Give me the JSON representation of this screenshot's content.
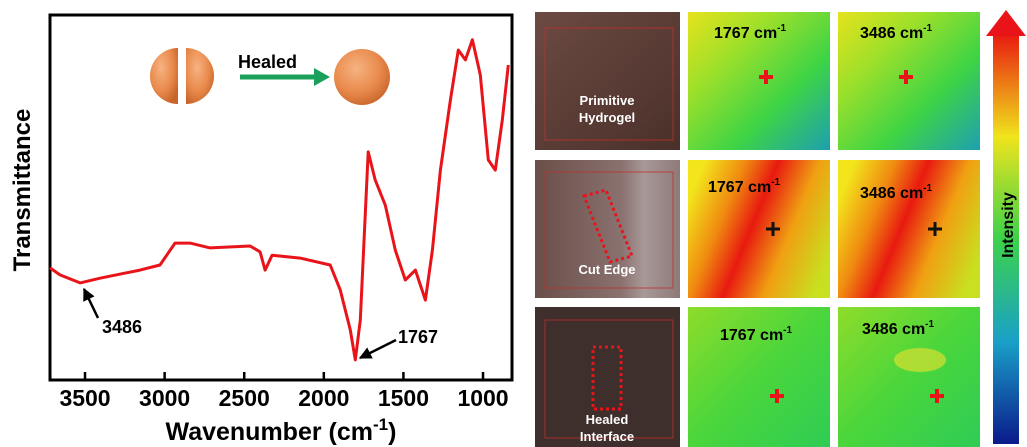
{
  "chart_data": {
    "type": "line",
    "x_label": {
      "text": "Wavenumber (cm",
      "sup": "-1",
      "end": ")"
    },
    "y_label": "Transmittance",
    "x": [
      3720,
      3657,
      3531,
      3406,
      3155,
      3029,
      2935,
      2840,
      2715,
      2463,
      2400,
      2369,
      2325,
      2149,
      1960,
      1897,
      1834,
      1802,
      1771,
      1721,
      1677,
      1614,
      1551,
      1488,
      1425,
      1362,
      1318,
      1268,
      1205,
      1155,
      1111,
      1067,
      1017,
      967,
      923,
      879,
      841
    ],
    "series": [
      {
        "color": "#e8141a",
        "values": [
          30.7,
          28.8,
          26.6,
          27.9,
          30.1,
          31.5,
          37.5,
          37.5,
          36.2,
          36.7,
          35.1,
          30.1,
          34.2,
          33.4,
          31.5,
          24.7,
          13.7,
          5.5,
          16.4,
          62.5,
          54.8,
          47.9,
          35.6,
          27.4,
          30.1,
          21.9,
          35.6,
          57.5,
          76.7,
          90.4,
          87.7,
          93.2,
          83.6,
          60.3,
          57.5,
          71.2,
          86.3
        ]
      }
    ],
    "xlim": [
      3720,
      818
    ],
    "ylim": [
      0,
      100
    ],
    "xticks": [
      3500,
      3000,
      2500,
      2000,
      1500,
      1000
    ],
    "annotations": [
      "3486",
      "1767",
      "Healed"
    ]
  },
  "panels": {
    "rows": [
      {
        "label": [
          "Primitive",
          "Hydrogel"
        ],
        "maps": [
          {
            "text": "1767 cm",
            "sup": "-1"
          },
          {
            "text": "3486 cm",
            "sup": "-1"
          }
        ]
      },
      {
        "label": [
          "Cut Edge"
        ],
        "maps": [
          {
            "text": "1767 cm",
            "sup": "-1"
          },
          {
            "text": "3486 cm",
            "sup": "-1"
          }
        ]
      },
      {
        "label": [
          "Healed",
          "Interface"
        ],
        "maps": [
          {
            "text": "1767 cm",
            "sup": "-1"
          },
          {
            "text": "3486 cm",
            "sup": "-1"
          }
        ]
      }
    ],
    "colorbar_label": "Intensity"
  }
}
